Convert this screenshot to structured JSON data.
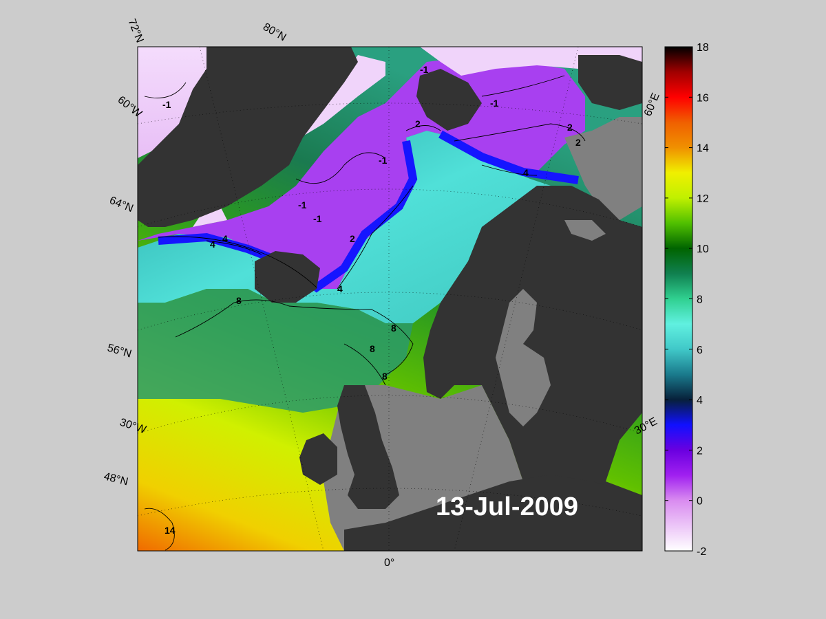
{
  "date_label": "13-Jul-2009",
  "colorbar": {
    "min": -2,
    "max": 18,
    "ticks": [
      "18",
      "16",
      "14",
      "12",
      "10",
      "8",
      "6",
      "4",
      "2",
      "0",
      "-2"
    ],
    "stops": [
      {
        "value": -2,
        "color": "#ffffff"
      },
      {
        "value": 0,
        "color": "#d98cf0"
      },
      {
        "value": 1,
        "color": "#a020f0"
      },
      {
        "value": 2,
        "color": "#6a00e0"
      },
      {
        "value": 3,
        "color": "#1010ff"
      },
      {
        "value": 4,
        "color": "#07203a"
      },
      {
        "value": 5,
        "color": "#1a7a8c"
      },
      {
        "value": 6,
        "color": "#40c8c8"
      },
      {
        "value": 7,
        "color": "#60f0e0"
      },
      {
        "value": 8,
        "color": "#30d090"
      },
      {
        "value": 9,
        "color": "#108050"
      },
      {
        "value": 10,
        "color": "#006400"
      },
      {
        "value": 11,
        "color": "#50c000"
      },
      {
        "value": 12,
        "color": "#c0f000"
      },
      {
        "value": 13,
        "color": "#f0f000"
      },
      {
        "value": 14,
        "color": "#f09000"
      },
      {
        "value": 15,
        "color": "#f06000"
      },
      {
        "value": 16,
        "color": "#ff0000"
      },
      {
        "value": 17,
        "color": "#a00000"
      },
      {
        "value": 18,
        "color": "#000000"
      }
    ]
  },
  "grid_labels": {
    "lat72": "72°N",
    "lat80": "80°N",
    "lon60w": "60°W",
    "lat64": "64°N",
    "lat56": "56°N",
    "lon30w": "30°W",
    "lat48": "48°N",
    "lon0": "0°",
    "lon30e": "30°E",
    "lon60e": "60°E"
  },
  "contour_labels": [
    "-1",
    "-1",
    "-1",
    "-1",
    "-1",
    "-1",
    "2",
    "2",
    "2",
    "2",
    "4",
    "4",
    "4",
    "4",
    "8",
    "8",
    "8",
    "8",
    "14"
  ],
  "colors": {
    "land": "#333333",
    "shelf": "#808080",
    "background": "#cccccc"
  }
}
